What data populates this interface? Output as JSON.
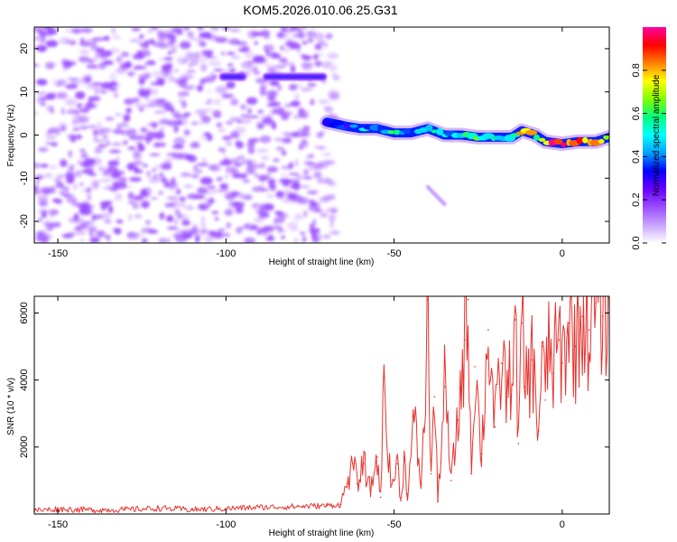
{
  "title": "KOM5.2026.010.06.25.G31",
  "colors": {
    "snr_line": "#e8322e",
    "speck": "#9a4dff",
    "colormap": [
      "#ffffff",
      "#c9a3ff",
      "#9a4dff",
      "#6a00ff",
      "#0000ff",
      "#00a0ff",
      "#00ffff",
      "#00ff80",
      "#80ff00",
      "#ffff00",
      "#ff8000",
      "#ff0000",
      "#ff00a0"
    ]
  },
  "chart_data": [
    {
      "type": "heatmap",
      "title": "",
      "xlabel": "Height of straight line (km)",
      "ylabel": "Frequency (Hz)",
      "xlim": [
        -157,
        14
      ],
      "ylim": [
        -25,
        25
      ],
      "xticks": [
        -150,
        -100,
        -50,
        0
      ],
      "xtick_labels": [
        "-150",
        "-100",
        "-50",
        "0"
      ],
      "yticks": [
        -20,
        -10,
        0,
        10,
        20
      ],
      "ytick_labels": [
        "-20",
        "-10",
        "0",
        "10",
        "20"
      ],
      "colorbar": {
        "label": "Normalized spectral amplitude",
        "range": [
          0,
          1
        ],
        "ticks": [
          0.0,
          0.2,
          0.4,
          0.6,
          0.8
        ],
        "tick_labels": [
          "0.0",
          "0.2",
          "0.4",
          "0.6",
          "0.8"
        ]
      },
      "ridge": {
        "x": [
          -70,
          -64,
          -60,
          -55,
          -50,
          -45,
          -40,
          -35,
          -30,
          -25,
          -20,
          -15,
          -12,
          -8,
          -5,
          0,
          5,
          10,
          14
        ],
        "freq_hz": [
          3,
          2,
          1.5,
          1.5,
          0.5,
          0.5,
          1.5,
          0,
          0,
          -0.5,
          -0.5,
          -0.5,
          1,
          0,
          -1.5,
          -2,
          -1.5,
          -1.5,
          -0.5
        ],
        "amplitude": [
          0.2,
          0.35,
          0.45,
          0.45,
          0.55,
          0.45,
          0.5,
          0.45,
          0.5,
          0.55,
          0.6,
          0.5,
          0.85,
          0.65,
          0.8,
          0.95,
          0.85,
          0.9,
          0.6
        ]
      },
      "upper_band": {
        "freq_hz": 13.5,
        "segments": [
          [
            -102,
            -94
          ],
          [
            -89,
            -70
          ]
        ],
        "amplitude": 0.2
      },
      "faint_streak": {
        "x": [
          -40,
          -35
        ],
        "freq_hz": [
          -12,
          -16
        ],
        "amplitude": 0.08
      },
      "noise_region": {
        "x": [
          -157,
          -67
        ],
        "freq_hz": [
          -25,
          25
        ],
        "max_amplitude": 0.06
      }
    },
    {
      "type": "line",
      "title": "",
      "xlabel": "Height of straight line (km)",
      "ylabel": "SNR (10 * v/v)",
      "xlim": [
        -157,
        14
      ],
      "ylim": [
        0,
        6500
      ],
      "xticks": [
        -150,
        -100,
        -50,
        0
      ],
      "xtick_labels": [
        "-150",
        "-100",
        "-50",
        "0"
      ],
      "yticks": [
        2000,
        4000,
        6000
      ],
      "ytick_labels": [
        "2000",
        "4000",
        "6000"
      ],
      "series": [
        {
          "name": "SNR",
          "x": [
            -157,
            -150,
            -140,
            -130,
            -120,
            -110,
            -100,
            -90,
            -80,
            -70,
            -66,
            -64,
            -62,
            -61,
            -59,
            -57,
            -55,
            -54,
            -53,
            -51,
            -49,
            -48,
            -47,
            -46,
            -44,
            -42,
            -41,
            -40,
            -39,
            -38,
            -37,
            -35,
            -33,
            -31,
            -29,
            -28,
            -27,
            -26,
            -24,
            -22,
            -20,
            -18,
            -16,
            -14,
            -13,
            -12,
            -11,
            -9,
            -7,
            -6,
            -5,
            -4,
            -3,
            -1,
            0,
            2,
            4,
            6,
            8,
            10,
            12,
            14
          ],
          "values": [
            100,
            150,
            120,
            130,
            170,
            130,
            160,
            200,
            220,
            250,
            280,
            900,
            1500,
            900,
            1500,
            700,
            1700,
            500,
            4100,
            800,
            1500,
            400,
            1600,
            600,
            2800,
            900,
            2600,
            6400,
            1200,
            3500,
            400,
            3800,
            1000,
            2800,
            5200,
            6400,
            1200,
            4400,
            1800,
            5500,
            2600,
            4500,
            3500,
            5800,
            2100,
            5700,
            3800,
            4600,
            2500,
            5000,
            3400,
            5300,
            4200,
            5200,
            4500,
            5700,
            5000,
            5900,
            5500,
            6300,
            5900,
            6200
          ]
        }
      ]
    }
  ]
}
